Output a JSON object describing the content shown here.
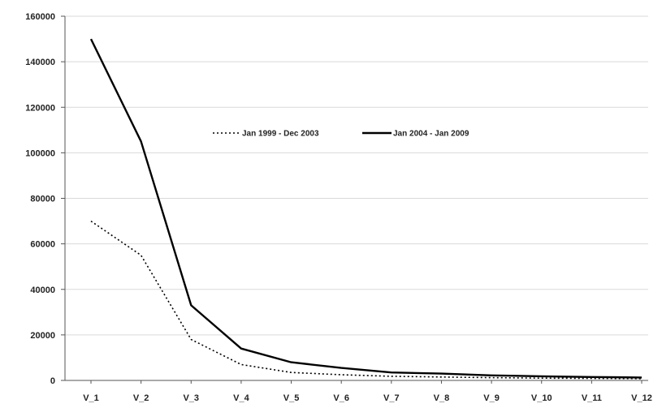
{
  "chart_data": {
    "type": "line",
    "title": "",
    "xlabel": "",
    "ylabel": "",
    "categories": [
      "V_1",
      "V_2",
      "V_3",
      "V_4",
      "V_5",
      "V_6",
      "V_7",
      "V_8",
      "V_9",
      "V_10",
      "V_11",
      "V_12"
    ],
    "ylim": [
      0,
      160000
    ],
    "yticks": [
      "0",
      "20000",
      "40000",
      "60000",
      "80000",
      "100000",
      "120000",
      "140000",
      "160000"
    ],
    "grid": "horizontal",
    "legend_position": "top-center",
    "series": [
      {
        "name": "Jan 1999 - Dec 2003",
        "line_style": "dotted",
        "color": "#000000",
        "values": [
          70000,
          55000,
          18000,
          7000,
          3500,
          2500,
          1800,
          1500,
          1200,
          1000,
          900,
          800
        ]
      },
      {
        "name": "Jan 2004 - Jan 2009",
        "line_style": "solid",
        "color": "#000000",
        "values": [
          150000,
          105000,
          33000,
          14000,
          8000,
          5500,
          3500,
          3000,
          2200,
          1800,
          1500,
          1300
        ]
      }
    ]
  }
}
